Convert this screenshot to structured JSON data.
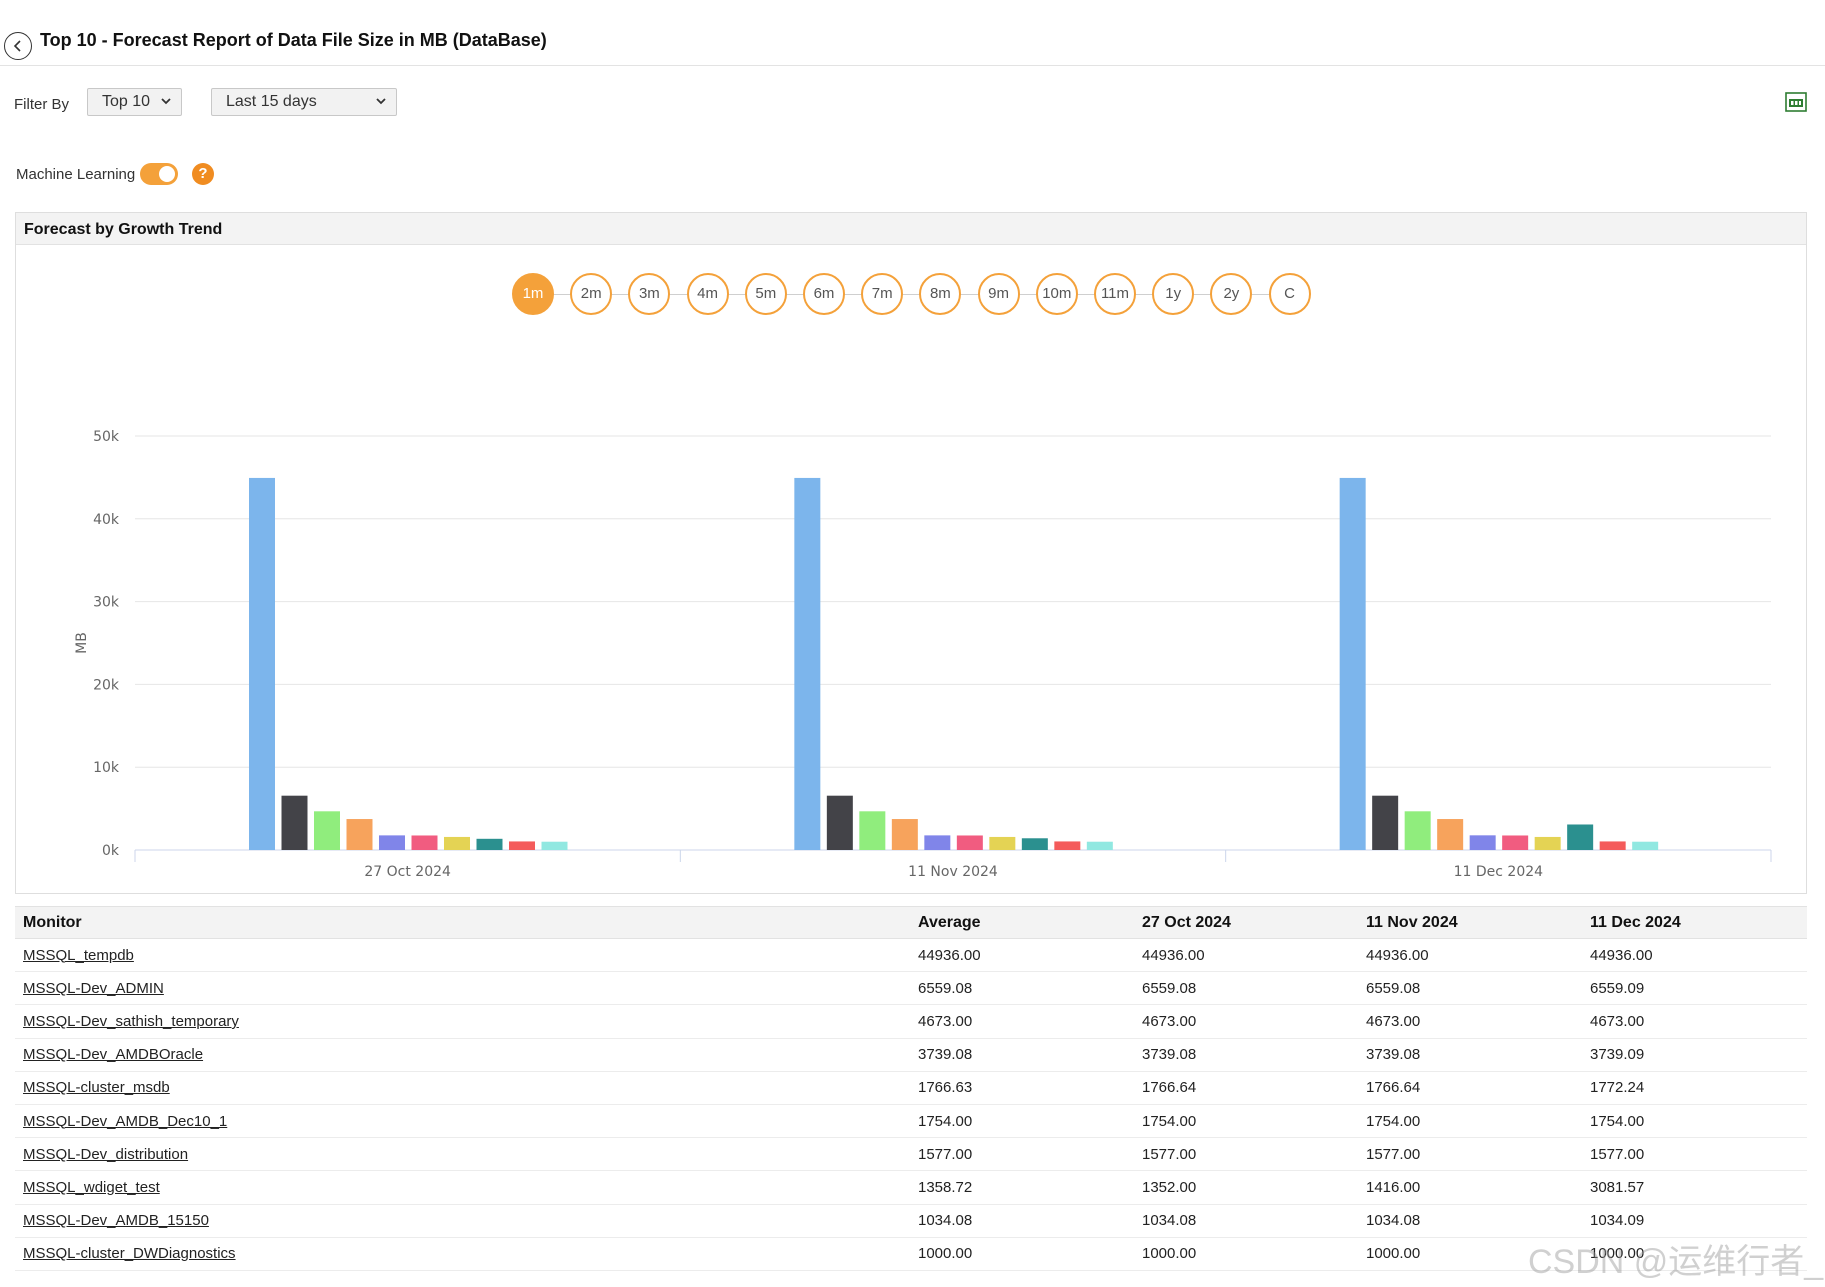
{
  "page": {
    "title": "Top 10 - Forecast Report of Data File Size in MB (DataBase)"
  },
  "filters": {
    "label": "Filter By",
    "top_select": "Top 10",
    "period_select": "Last 15 days"
  },
  "ml": {
    "label": "Machine Learning",
    "enabled": true,
    "help": "?"
  },
  "panel": {
    "title": "Forecast by Growth Trend",
    "ranges": [
      "1m",
      "2m",
      "3m",
      "4m",
      "5m",
      "6m",
      "7m",
      "8m",
      "9m",
      "10m",
      "11m",
      "1y",
      "2y",
      "C"
    ],
    "active_range": "1m"
  },
  "chart_data": {
    "type": "bar",
    "title": "",
    "ylabel": "MB",
    "xlabel": "",
    "ylim": [
      0,
      50000
    ],
    "yticks": [
      "0k",
      "10k",
      "20k",
      "30k",
      "40k",
      "50k"
    ],
    "ytick_values": [
      0,
      10000,
      20000,
      30000,
      40000,
      50000
    ],
    "categories": [
      "27 Oct 2024",
      "11 Nov 2024",
      "11 Dec 2024"
    ],
    "grid": true,
    "legend": "none",
    "series": [
      {
        "name": "MSSQL_tempdb",
        "color": "#7cb5ec",
        "values": [
          44936.0,
          44936.0,
          44936.0
        ]
      },
      {
        "name": "MSSQL-Dev_ADMIN",
        "color": "#434348",
        "values": [
          6559.08,
          6559.08,
          6559.09
        ]
      },
      {
        "name": "MSSQL-Dev_sathish_temporary",
        "color": "#90ed7d",
        "values": [
          4673.0,
          4673.0,
          4673.0
        ]
      },
      {
        "name": "MSSQL-Dev_AMDBOracle",
        "color": "#f7a35c",
        "values": [
          3739.08,
          3739.08,
          3739.09
        ]
      },
      {
        "name": "MSSQL-cluster_msdb",
        "color": "#8085e9",
        "values": [
          1766.64,
          1766.64,
          1772.24
        ]
      },
      {
        "name": "MSSQL-Dev_AMDB_Dec10_1",
        "color": "#f15c80",
        "values": [
          1754.0,
          1754.0,
          1754.0
        ]
      },
      {
        "name": "MSSQL-Dev_distribution",
        "color": "#e4d354",
        "values": [
          1577.0,
          1577.0,
          1577.0
        ]
      },
      {
        "name": "MSSQL_wdiget_test",
        "color": "#2b908f",
        "values": [
          1352.0,
          1416.0,
          3081.57
        ]
      },
      {
        "name": "MSSQL-Dev_AMDB_15150",
        "color": "#f45b5b",
        "values": [
          1034.08,
          1034.08,
          1034.09
        ]
      },
      {
        "name": "MSSQL-cluster_DWDiagnostics",
        "color": "#91e8e1",
        "values": [
          1000.0,
          1000.0,
          1000.0
        ]
      }
    ]
  },
  "table": {
    "headers": [
      "Monitor",
      "Average",
      "27 Oct 2024",
      "11 Nov 2024",
      "11 Dec 2024"
    ],
    "rows": [
      [
        "MSSQL_tempdb",
        "44936.00",
        "44936.00",
        "44936.00",
        "44936.00"
      ],
      [
        "MSSQL-Dev_ADMIN",
        "6559.08",
        "6559.08",
        "6559.08",
        "6559.09"
      ],
      [
        "MSSQL-Dev_sathish_temporary",
        "4673.00",
        "4673.00",
        "4673.00",
        "4673.00"
      ],
      [
        "MSSQL-Dev_AMDBOracle",
        "3739.08",
        "3739.08",
        "3739.08",
        "3739.09"
      ],
      [
        "MSSQL-cluster_msdb",
        "1766.63",
        "1766.64",
        "1766.64",
        "1772.24"
      ],
      [
        "MSSQL-Dev_AMDB_Dec10_1",
        "1754.00",
        "1754.00",
        "1754.00",
        "1754.00"
      ],
      [
        "MSSQL-Dev_distribution",
        "1577.00",
        "1577.00",
        "1577.00",
        "1577.00"
      ],
      [
        "MSSQL_wdiget_test",
        "1358.72",
        "1352.00",
        "1416.00",
        "3081.57"
      ],
      [
        "MSSQL-Dev_AMDB_15150",
        "1034.08",
        "1034.08",
        "1034.08",
        "1034.09"
      ],
      [
        "MSSQL-cluster_DWDiagnostics",
        "1000.00",
        "1000.00",
        "1000.00",
        "1000.00"
      ]
    ]
  },
  "watermark": "CSDN @运维行者_"
}
